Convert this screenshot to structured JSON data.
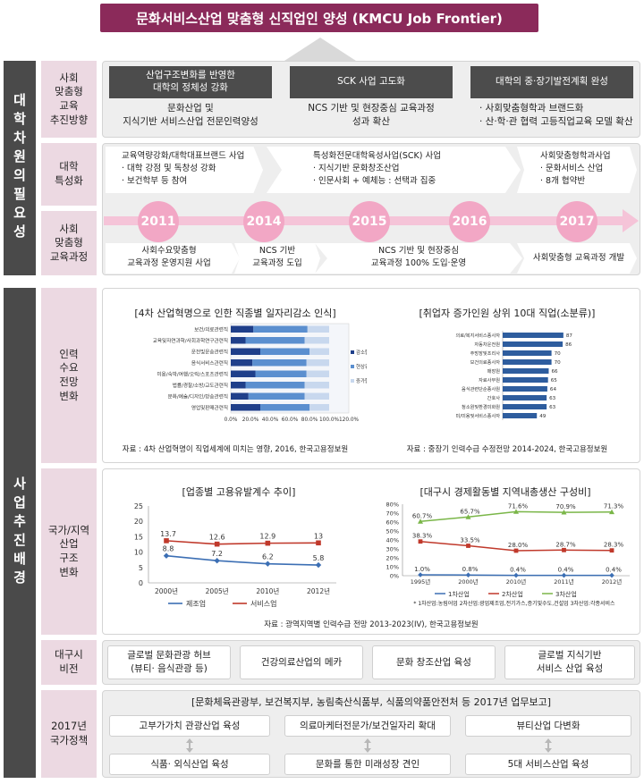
{
  "title": "문화서비스산업 맞춤형 신직업인 양성 (KMCU Job Frontier)",
  "left_bars": {
    "top": "대학차원의필요성",
    "bottom": "사업추진배경"
  },
  "labels": {
    "social_edu_dir": "사회\n맞춤형\n교육\n추진방향",
    "univ_spec": "대학\n특성화",
    "social_curr": "사회\n맞춤형\n교육과정",
    "manpower": "인력\n수요\n전망\n변화",
    "national": "국가/지역\n산업\n구조\n변화",
    "daegu_vision": "대구시\n비전",
    "policy_2017": "2017년\n국가정책"
  },
  "directions": [
    {
      "head": "산업구조변화를 반영한\n대학의 정체성 강화",
      "body": "문화산업 및\n지식기반 서비스산업 전문인력양성"
    },
    {
      "head": "SCK 사업 고도화",
      "body": "NCS 기반 및 현장중심 교육과정\n성과 확산"
    },
    {
      "head": "대학의 중·장기발전계획 완성",
      "body": "· 사회맞춤형학과 브랜드화\n· 산·학·관 협력 고등직업교육 모델 확산"
    }
  ],
  "specializations": [
    "교육역량강화/대학대표브랜드 사업\n· 대학 강점 및 독창성 강화\n· 보건학부 등 참여",
    "특성화전문대학육성사업(SCK) 사업\n· 지식기반 문화창조산업\n· 인문사회 + 예체능 : 선택과 집중",
    "사회맞춤형학과사업\n· 문화서비스 산업\n· 8개 협약반"
  ],
  "years": [
    "2011",
    "2014",
    "2015",
    "2016",
    "2017"
  ],
  "curricula": [
    "사회수요맞춤형\n교육과정 운영지원 사업",
    "NCS 기반\n교육과정 도입",
    "NCS 기반 및 현장중심\n교육과정 100% 도입·운영",
    "사회맞춤형 교육과정 개발"
  ],
  "chart1": {
    "title": "[4차 산업혁명으로 인한 직종별 일자리감소 인식]",
    "source": "자료 : 4차 산업혁명이 직업세계에 미치는 영향, 2016, 한국고용정보원"
  },
  "chart2": {
    "title": "[취업자 증가인원 상위 10대 직업(소분류)]",
    "source": "자료 : 중장기 인력수급 수정전망 2014-2024, 한국고용정보원"
  },
  "chart3": {
    "title": "[업종별 고용유발계수 추이]"
  },
  "chart4": {
    "title": "[대구시 경제활동별 지역내총생산 구성비]",
    "note": "* 1차산업:농림어업 2차산업:광업제조업,전기가스,증기및수도,건설업 3차산업:각종서비스"
  },
  "national_source": "자료 : 광역지역별 인력수급 전망 2013-2023(IV), 한국고용정보원",
  "visions": [
    "글로벌 문화관광 허브\n(뷰티· 음식관광 등)",
    "건강의료산업의 메카",
    "문화 창조산업 육성",
    "글로벌 지식기반\n서비스 산업 육성"
  ],
  "policy": {
    "head": "[문화체육관광부, 보건복지부, 농림축산식품부, 식품의약품안전처 등 2017년 업무보고]",
    "top": [
      "고부가가치 관광산업 육성",
      "의료마케터전문가/보건일자리 확대",
      "뷰티산업 다변화"
    ],
    "bottom": [
      "식품· 외식산업 육성",
      "문화를 통한 미래성장 견인",
      "5대 서비스산업 육성"
    ]
  },
  "chart_data": [
    {
      "type": "bar",
      "stacked": true,
      "horizontal": true,
      "categories": [
        "보건/의료관련직",
        "교육및자연과학/사회과학연구관련직",
        "운전및운송관련직",
        "음식서비스관련직",
        "미용/숙박/여행/오락/스포츠관련직",
        "법률/경찰/소방/교도관련직",
        "문화/예술/디자인/방송관련직",
        "영업및판매관련직"
      ],
      "series": [
        {
          "name": "감소할것이다.",
          "color": "#1f3f8a",
          "values": [
            23,
            15,
            30,
            22,
            25,
            15,
            18,
            30
          ]
        },
        {
          "name": "현상유지",
          "color": "#5b8fcf",
          "values": [
            55,
            60,
            50,
            55,
            52,
            60,
            57,
            50
          ]
        },
        {
          "name": "증가할것이다.",
          "color": "#c8d8ee",
          "values": [
            22,
            25,
            20,
            23,
            23,
            25,
            25,
            20
          ]
        }
      ],
      "xticks": [
        "0.0%",
        "20.0%",
        "40.0%",
        "60.0%",
        "80.0%",
        "100.0%",
        "120.0%"
      ],
      "xlim": [
        0,
        120
      ]
    },
    {
      "type": "bar",
      "horizontal": true,
      "categories": [
        "의료/복지서비스종사자",
        "자동차운전원",
        "주방장및조리사",
        "보건의료종사자",
        "매장원",
        "자료사무원",
        "음식관련단순종사원",
        "간호사",
        "청소원및환경미화원",
        "미/미용및서비스종사자"
      ],
      "values": [
        87,
        86,
        70,
        70,
        66,
        65,
        64,
        63,
        63,
        49
      ],
      "color": "#2e5d9e"
    },
    {
      "type": "line",
      "x": [
        "2000년",
        "2005년",
        "2010년",
        "2012년"
      ],
      "series": [
        {
          "name": "제조업",
          "color": "#3c6fb4",
          "values": [
            8.8,
            7.2,
            6.2,
            5.8
          ]
        },
        {
          "name": "서비스업",
          "color": "#c0392b",
          "values": [
            13.7,
            12.6,
            12.9,
            13
          ]
        }
      ],
      "yticks": [
        0,
        5,
        10,
        15,
        20,
        25
      ],
      "ylim": [
        0,
        25
      ]
    },
    {
      "type": "line",
      "x": [
        "1995년",
        "2000년",
        "2010년",
        "2011년",
        "2012년"
      ],
      "series": [
        {
          "name": "1차산업",
          "color": "#3c6fb4",
          "values": [
            1.0,
            0.8,
            0.4,
            0.4,
            0.4
          ],
          "labels": [
            "1.0%",
            "0.8%",
            "0.4%",
            "0.4%",
            "0.4%"
          ]
        },
        {
          "name": "2차산업",
          "color": "#c0392b",
          "values": [
            38.3,
            33.5,
            28.0,
            28.7,
            28.3
          ],
          "labels": [
            "38.3%",
            "33.5%",
            "28.0%",
            "28.7%",
            "28.3%"
          ]
        },
        {
          "name": "3차산업",
          "color": "#7ab648",
          "values": [
            60.7,
            65.7,
            71.6,
            70.9,
            71.3
          ],
          "labels": [
            "60.7%",
            "65.7%",
            "71.6%",
            "70.9%",
            "71.3%"
          ]
        }
      ],
      "yticks": [
        "0%",
        "10%",
        "20%",
        "30%",
        "40%",
        "50%",
        "60%",
        "70%",
        "80%"
      ],
      "ylim": [
        0,
        80
      ]
    }
  ]
}
